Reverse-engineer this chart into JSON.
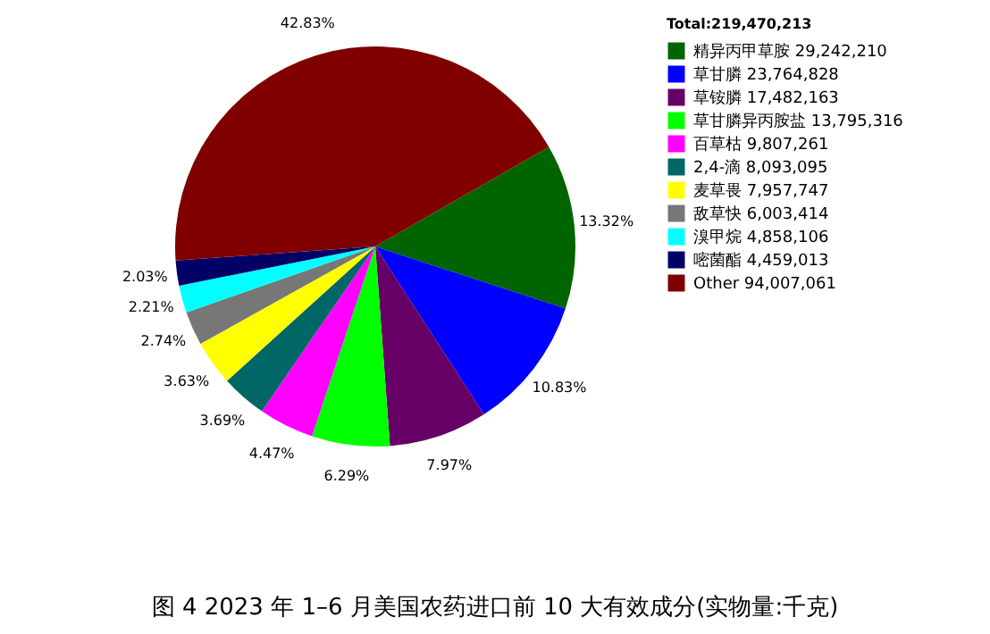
{
  "chart_data": {
    "type": "pie",
    "title": "图 4  2023 年 1–6 月美国农药进口前 10 大有效成分(实物量:千克)",
    "legend_title": "Total:219,470,213",
    "legend": "top right",
    "categories": [
      "精异丙甲草胺  29,242,210",
      "草甘膦  23,764,828",
      "草铵膦  17,482,163",
      "草甘膦异丙胺盐  13,795,316",
      "百草枯  9,807,261",
      "2,4-滴  8,093,095",
      "麦草畏  7,957,747",
      "敌草快  6,003,414",
      "溴甲烷  4,858,106",
      "嘧菌酯  4,459,013",
      "Other  94,007,061"
    ],
    "values": [
      13.32,
      10.83,
      7.97,
      6.29,
      4.47,
      3.69,
      3.63,
      2.74,
      2.21,
      2.03,
      42.83
    ],
    "value_labels": [
      "13.32%",
      "10.83%",
      "7.97%",
      "6.29%",
      "4.47%",
      "3.69%",
      "3.63%",
      "2.74%",
      "2.21%",
      "2.03%",
      "42.83%"
    ],
    "colors": [
      "#006400",
      "#0000ff",
      "#660066",
      "#00ff00",
      "#ff00ff",
      "#006666",
      "#ffff00",
      "#777777",
      "#00ffff",
      "#000066",
      "#800000"
    ]
  }
}
